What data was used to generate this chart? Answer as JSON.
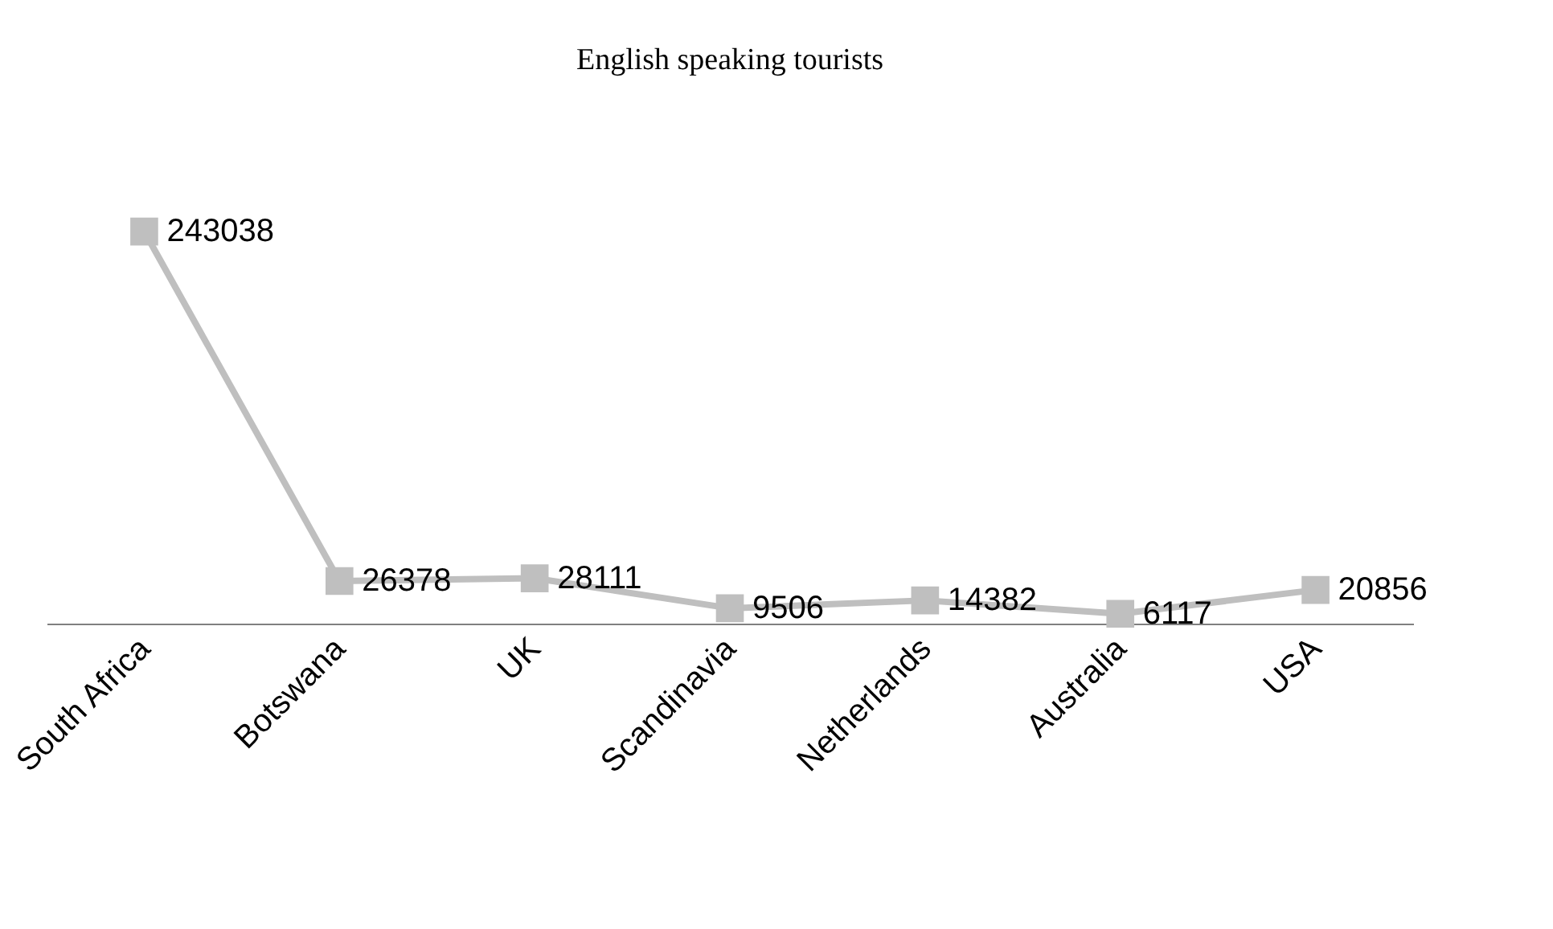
{
  "chart_data": {
    "type": "line",
    "title": "English speaking tourists",
    "categories": [
      "South Africa",
      "Botswana",
      "UK",
      "Scandinavia",
      "Netherlands",
      "Australia",
      "USA"
    ],
    "series": [
      {
        "color": "#bfbfbf",
        "values": [
          243038,
          26378,
          28111,
          9506,
          14382,
          6117,
          20856
        ]
      }
    ],
    "data_labels": true,
    "marker": "square",
    "line_style": "solid",
    "grid": false
  }
}
